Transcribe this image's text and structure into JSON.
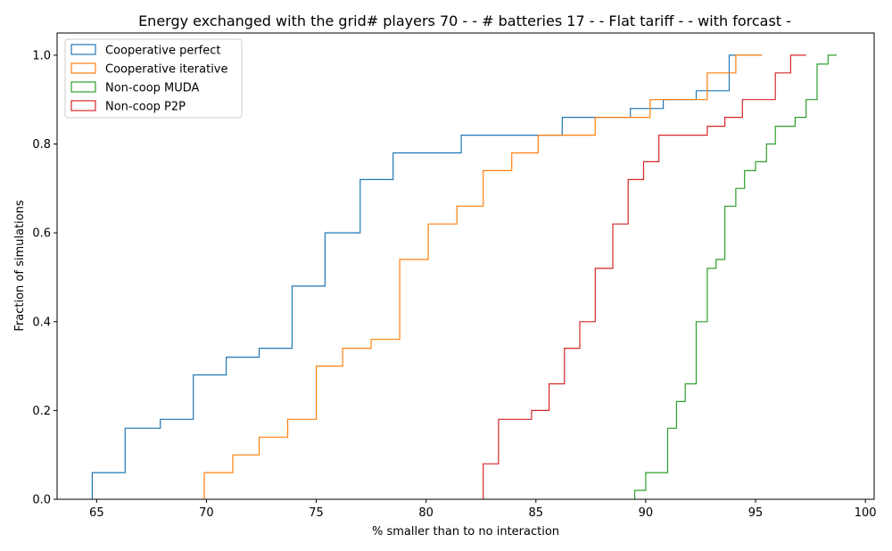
{
  "chart_data": {
    "type": "line",
    "subtype": "step-cdf",
    "title": "Energy exchanged with the grid# players 70 - - # batteries 17 - - Flat tariff -  - with forcast -",
    "xlabel": "% smaller than to no interaction",
    "ylabel": "Fraction of simulations",
    "xlim": [
      63.2,
      100.4
    ],
    "ylim": [
      0.0,
      1.05
    ],
    "xticks": [
      65,
      70,
      75,
      80,
      85,
      90,
      95,
      100
    ],
    "yticks": [
      0.0,
      0.2,
      0.4,
      0.6,
      0.8,
      1.0
    ],
    "xtick_labels": [
      "65",
      "70",
      "75",
      "80",
      "85",
      "90",
      "95",
      "100"
    ],
    "ytick_labels": [
      "0.0",
      "0.2",
      "0.4",
      "0.6",
      "0.8",
      "1.0"
    ],
    "grid": false,
    "legend_position": "top-left",
    "series": [
      {
        "name": "Cooperative perfect",
        "color": "#1f77b4",
        "x": [
          64.8,
          66.3,
          67.9,
          69.4,
          70.9,
          72.4,
          73.9,
          75.4,
          77.0,
          78.5,
          81.6,
          86.2,
          89.3,
          90.8,
          92.3,
          93.8,
          95.3
        ],
        "y": [
          0.06,
          0.16,
          0.18,
          0.28,
          0.32,
          0.34,
          0.48,
          0.6,
          0.72,
          0.78,
          0.82,
          0.86,
          0.88,
          0.9,
          0.92,
          1.0,
          1.0
        ]
      },
      {
        "name": "Cooperative iterative",
        "color": "#ff7f0e",
        "x": [
          69.9,
          71.2,
          72.4,
          73.7,
          75.0,
          76.2,
          77.5,
          78.8,
          80.1,
          81.4,
          82.6,
          83.9,
          85.1,
          87.7,
          90.2,
          92.8,
          94.1,
          95.3
        ],
        "y": [
          0.06,
          0.1,
          0.14,
          0.18,
          0.3,
          0.34,
          0.36,
          0.54,
          0.62,
          0.66,
          0.74,
          0.78,
          0.82,
          0.86,
          0.9,
          0.96,
          1.0,
          1.0
        ]
      },
      {
        "name": "Non-coop MUDA",
        "color": "#2ca02c",
        "x": [
          89.5,
          90.0,
          91.0,
          91.4,
          91.8,
          92.3,
          92.8,
          93.2,
          93.6,
          94.1,
          94.5,
          95.0,
          95.5,
          95.9,
          96.8,
          97.3,
          97.8,
          98.3,
          98.7
        ],
        "y": [
          0.02,
          0.06,
          0.16,
          0.22,
          0.26,
          0.4,
          0.52,
          0.54,
          0.66,
          0.7,
          0.74,
          0.76,
          0.8,
          0.84,
          0.86,
          0.9,
          0.98,
          1.0,
          1.0
        ]
      },
      {
        "name": "Non-coop P2P",
        "color": "#d62728",
        "x": [
          82.6,
          83.3,
          84.8,
          85.6,
          86.3,
          87.0,
          87.7,
          88.5,
          89.2,
          89.9,
          90.6,
          92.8,
          93.6,
          94.4,
          95.9,
          96.6,
          97.3
        ],
        "y": [
          0.08,
          0.18,
          0.2,
          0.26,
          0.34,
          0.4,
          0.52,
          0.62,
          0.72,
          0.76,
          0.82,
          0.84,
          0.86,
          0.9,
          0.96,
          1.0,
          1.0
        ]
      }
    ]
  }
}
